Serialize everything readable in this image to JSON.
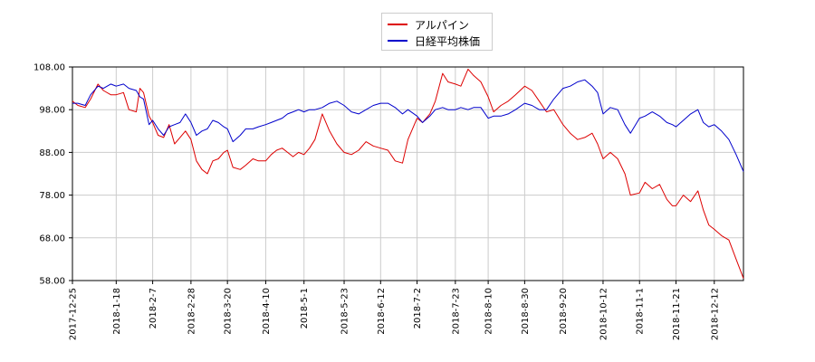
{
  "chart_data": {
    "type": "line",
    "title": "",
    "xlabel": "",
    "ylabel": "",
    "ylim": [
      58.0,
      108.0
    ],
    "y_ticks": [
      "58.00",
      "68.00",
      "78.00",
      "88.00",
      "98.00",
      "108.00"
    ],
    "x_tick_labels": [
      "2017-12-25",
      "2018-1-18",
      "2018-2-7",
      "2018-2-28",
      "2018-3-20",
      "2018-4-10",
      "2018-5-1",
      "2018-5-23",
      "2018-6-12",
      "2018-7-2",
      "2018-7-23",
      "2018-8-10",
      "2018-8-30",
      "2018-9-20",
      "2018-10-12",
      "2018-11-1",
      "2018-11-21",
      "2018-12-12"
    ],
    "x_range": [
      "2017-12-25",
      "2018-12-28"
    ],
    "grid": true,
    "legend_position": "top-center",
    "series": [
      {
        "name": "アルパイン",
        "color": "#dd0000",
        "points": [
          [
            "2017-12-25",
            100.0
          ],
          [
            "2017-12-28",
            99.0
          ],
          [
            "2018-1-1",
            98.5
          ],
          [
            "2018-1-4",
            100.5
          ],
          [
            "2018-1-8",
            104.0
          ],
          [
            "2018-1-11",
            102.5
          ],
          [
            "2018-1-15",
            101.5
          ],
          [
            "2018-1-18",
            101.5
          ],
          [
            "2018-1-22",
            102.0
          ],
          [
            "2018-1-25",
            98.0
          ],
          [
            "2018-1-29",
            97.5
          ],
          [
            "2018-1-31",
            103.0
          ],
          [
            "2018-2-2",
            102.0
          ],
          [
            "2018-2-5",
            96.5
          ],
          [
            "2018-2-7",
            95.0
          ],
          [
            "2018-2-10",
            92.0
          ],
          [
            "2018-2-13",
            91.5
          ],
          [
            "2018-2-16",
            94.5
          ],
          [
            "2018-2-19",
            90.0
          ],
          [
            "2018-2-22",
            91.5
          ],
          [
            "2018-2-25",
            93.0
          ],
          [
            "2018-2-28",
            91.0
          ],
          [
            "2018-3-3",
            86.0
          ],
          [
            "2018-3-6",
            84.0
          ],
          [
            "2018-3-9",
            83.0
          ],
          [
            "2018-3-12",
            86.0
          ],
          [
            "2018-3-15",
            86.5
          ],
          [
            "2018-3-18",
            88.0
          ],
          [
            "2018-3-20",
            88.5
          ],
          [
            "2018-3-23",
            84.5
          ],
          [
            "2018-3-27",
            84.0
          ],
          [
            "2018-3-30",
            85.0
          ],
          [
            "2018-4-3",
            86.5
          ],
          [
            "2018-4-6",
            86.0
          ],
          [
            "2018-4-10",
            86.0
          ],
          [
            "2018-4-13",
            87.5
          ],
          [
            "2018-4-16",
            88.5
          ],
          [
            "2018-4-19",
            89.0
          ],
          [
            "2018-4-22",
            88.0
          ],
          [
            "2018-4-25",
            87.0
          ],
          [
            "2018-4-28",
            88.0
          ],
          [
            "2018-5-1",
            87.5
          ],
          [
            "2018-5-4",
            89.0
          ],
          [
            "2018-5-7",
            91.0
          ],
          [
            "2018-5-11",
            97.0
          ],
          [
            "2018-5-15",
            93.0
          ],
          [
            "2018-5-19",
            90.0
          ],
          [
            "2018-5-23",
            88.0
          ],
          [
            "2018-5-27",
            87.5
          ],
          [
            "2018-5-31",
            88.5
          ],
          [
            "2018-6-4",
            90.5
          ],
          [
            "2018-6-8",
            89.5
          ],
          [
            "2018-6-12",
            89.0
          ],
          [
            "2018-6-16",
            88.5
          ],
          [
            "2018-6-20",
            86.0
          ],
          [
            "2018-6-24",
            85.5
          ],
          [
            "2018-6-27",
            91.0
          ],
          [
            "2018-7-2",
            96.0
          ],
          [
            "2018-7-5",
            95.0
          ],
          [
            "2018-7-9",
            97.0
          ],
          [
            "2018-7-12",
            100.0
          ],
          [
            "2018-7-16",
            106.5
          ],
          [
            "2018-7-19",
            104.5
          ],
          [
            "2018-7-23",
            104.0
          ],
          [
            "2018-7-26",
            103.5
          ],
          [
            "2018-7-30",
            107.5
          ],
          [
            "2018-8-2",
            106.0
          ],
          [
            "2018-8-6",
            104.5
          ],
          [
            "2018-8-10",
            101.0
          ],
          [
            "2018-8-13",
            97.5
          ],
          [
            "2018-8-17",
            99.0
          ],
          [
            "2018-8-21",
            100.0
          ],
          [
            "2018-8-25",
            101.5
          ],
          [
            "2018-8-30",
            103.5
          ],
          [
            "2018-9-3",
            102.5
          ],
          [
            "2018-9-7",
            100.0
          ],
          [
            "2018-9-11",
            97.5
          ],
          [
            "2018-9-15",
            98.0
          ],
          [
            "2018-9-20",
            94.5
          ],
          [
            "2018-9-24",
            92.5
          ],
          [
            "2018-9-28",
            91.0
          ],
          [
            "2018-10-2",
            91.5
          ],
          [
            "2018-10-6",
            92.5
          ],
          [
            "2018-10-9",
            90.0
          ],
          [
            "2018-10-12",
            86.5
          ],
          [
            "2018-10-16",
            88.0
          ],
          [
            "2018-10-20",
            86.5
          ],
          [
            "2018-10-24",
            83.0
          ],
          [
            "2018-10-27",
            78.0
          ],
          [
            "2018-11-1",
            78.5
          ],
          [
            "2018-11-4",
            81.0
          ],
          [
            "2018-11-8",
            79.5
          ],
          [
            "2018-11-12",
            80.5
          ],
          [
            "2018-11-16",
            77.0
          ],
          [
            "2018-11-19",
            75.5
          ],
          [
            "2018-11-21",
            75.5
          ],
          [
            "2018-11-25",
            78.0
          ],
          [
            "2018-11-29",
            76.5
          ],
          [
            "2018-12-3",
            79.0
          ],
          [
            "2018-12-6",
            74.5
          ],
          [
            "2018-12-9",
            71.0
          ],
          [
            "2018-12-12",
            70.0
          ],
          [
            "2018-12-16",
            68.5
          ],
          [
            "2018-12-20",
            67.5
          ],
          [
            "2018-12-24",
            63.0
          ],
          [
            "2018-12-28",
            58.5
          ]
        ]
      },
      {
        "name": "日経平均株価",
        "color": "#0000cc",
        "points": [
          [
            "2017-12-25",
            99.5
          ],
          [
            "2017-12-28",
            99.5
          ],
          [
            "2018-1-1",
            99.0
          ],
          [
            "2018-1-4",
            101.5
          ],
          [
            "2018-1-8",
            103.5
          ],
          [
            "2018-1-11",
            103.0
          ],
          [
            "2018-1-15",
            104.0
          ],
          [
            "2018-1-18",
            103.5
          ],
          [
            "2018-1-22",
            104.0
          ],
          [
            "2018-1-25",
            103.0
          ],
          [
            "2018-1-29",
            102.5
          ],
          [
            "2018-1-31",
            101.0
          ],
          [
            "2018-2-2",
            100.5
          ],
          [
            "2018-2-5",
            94.5
          ],
          [
            "2018-2-7",
            95.5
          ],
          [
            "2018-2-10",
            93.5
          ],
          [
            "2018-2-13",
            92.0
          ],
          [
            "2018-2-16",
            94.0
          ],
          [
            "2018-2-19",
            94.5
          ],
          [
            "2018-2-22",
            95.0
          ],
          [
            "2018-2-25",
            97.0
          ],
          [
            "2018-2-28",
            95.0
          ],
          [
            "2018-3-3",
            92.0
          ],
          [
            "2018-3-6",
            93.0
          ],
          [
            "2018-3-9",
            93.5
          ],
          [
            "2018-3-12",
            95.5
          ],
          [
            "2018-3-15",
            95.0
          ],
          [
            "2018-3-18",
            94.0
          ],
          [
            "2018-3-20",
            93.5
          ],
          [
            "2018-3-23",
            90.5
          ],
          [
            "2018-3-27",
            92.0
          ],
          [
            "2018-3-30",
            93.5
          ],
          [
            "2018-4-3",
            93.5
          ],
          [
            "2018-4-6",
            94.0
          ],
          [
            "2018-4-10",
            94.5
          ],
          [
            "2018-4-13",
            95.0
          ],
          [
            "2018-4-16",
            95.5
          ],
          [
            "2018-4-19",
            96.0
          ],
          [
            "2018-4-22",
            97.0
          ],
          [
            "2018-4-25",
            97.5
          ],
          [
            "2018-4-28",
            98.0
          ],
          [
            "2018-5-1",
            97.5
          ],
          [
            "2018-5-4",
            98.0
          ],
          [
            "2018-5-7",
            98.0
          ],
          [
            "2018-5-11",
            98.5
          ],
          [
            "2018-5-15",
            99.5
          ],
          [
            "2018-5-19",
            100.0
          ],
          [
            "2018-5-23",
            99.0
          ],
          [
            "2018-5-27",
            97.5
          ],
          [
            "2018-5-31",
            97.0
          ],
          [
            "2018-6-4",
            98.0
          ],
          [
            "2018-6-8",
            99.0
          ],
          [
            "2018-6-12",
            99.5
          ],
          [
            "2018-6-16",
            99.5
          ],
          [
            "2018-6-20",
            98.5
          ],
          [
            "2018-6-24",
            97.0
          ],
          [
            "2018-6-27",
            98.0
          ],
          [
            "2018-7-2",
            96.5
          ],
          [
            "2018-7-5",
            95.0
          ],
          [
            "2018-7-9",
            96.5
          ],
          [
            "2018-7-12",
            98.0
          ],
          [
            "2018-7-16",
            98.5
          ],
          [
            "2018-7-19",
            98.0
          ],
          [
            "2018-7-23",
            98.0
          ],
          [
            "2018-7-26",
            98.5
          ],
          [
            "2018-7-30",
            98.0
          ],
          [
            "2018-8-2",
            98.5
          ],
          [
            "2018-8-6",
            98.5
          ],
          [
            "2018-8-10",
            96.0
          ],
          [
            "2018-8-13",
            96.5
          ],
          [
            "2018-8-17",
            96.5
          ],
          [
            "2018-8-21",
            97.0
          ],
          [
            "2018-8-25",
            98.0
          ],
          [
            "2018-8-30",
            99.5
          ],
          [
            "2018-9-3",
            99.0
          ],
          [
            "2018-9-7",
            98.0
          ],
          [
            "2018-9-11",
            98.0
          ],
          [
            "2018-9-15",
            100.5
          ],
          [
            "2018-9-20",
            103.0
          ],
          [
            "2018-9-24",
            103.5
          ],
          [
            "2018-9-28",
            104.5
          ],
          [
            "2018-10-2",
            105.0
          ],
          [
            "2018-10-6",
            103.5
          ],
          [
            "2018-10-9",
            102.0
          ],
          [
            "2018-10-12",
            97.0
          ],
          [
            "2018-10-16",
            98.5
          ],
          [
            "2018-10-20",
            98.0
          ],
          [
            "2018-10-24",
            94.5
          ],
          [
            "2018-10-27",
            92.5
          ],
          [
            "2018-11-1",
            96.0
          ],
          [
            "2018-11-4",
            96.5
          ],
          [
            "2018-11-8",
            97.5
          ],
          [
            "2018-11-12",
            96.5
          ],
          [
            "2018-11-16",
            95.0
          ],
          [
            "2018-11-19",
            94.5
          ],
          [
            "2018-11-21",
            94.0
          ],
          [
            "2018-11-25",
            95.5
          ],
          [
            "2018-11-29",
            97.0
          ],
          [
            "2018-12-3",
            98.0
          ],
          [
            "2018-12-6",
            95.0
          ],
          [
            "2018-12-9",
            94.0
          ],
          [
            "2018-12-12",
            94.5
          ],
          [
            "2018-12-16",
            93.0
          ],
          [
            "2018-12-20",
            91.0
          ],
          [
            "2018-12-24",
            87.5
          ],
          [
            "2018-12-28",
            83.5
          ]
        ]
      }
    ]
  }
}
